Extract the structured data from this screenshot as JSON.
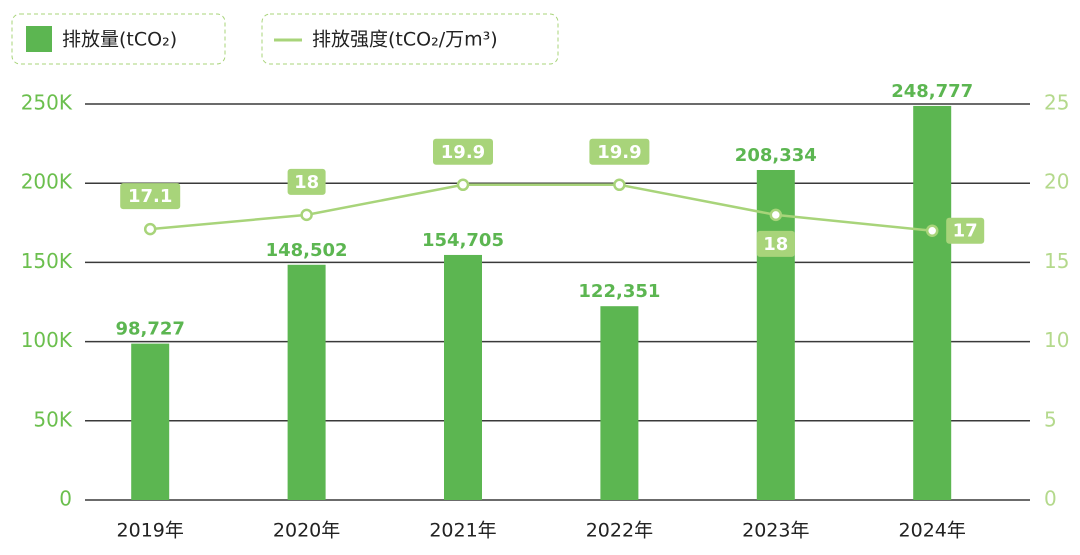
{
  "chart_data": {
    "type": "bar-line",
    "categories": [
      "2019年",
      "2020年",
      "2021年",
      "2022年",
      "2023年",
      "2024年"
    ],
    "series": [
      {
        "name": "排放量(tCO₂)",
        "type": "bar",
        "color": "#5cb651",
        "axis": "y",
        "values": [
          98727,
          148502,
          154705,
          122351,
          208334,
          248777
        ],
        "value_labels": [
          "98,727",
          "148,502",
          "154,705",
          "122,351",
          "208,334",
          "248,777"
        ]
      },
      {
        "name": "排放强度(tCO₂/万m³)",
        "type": "line",
        "color": "#a8d47a",
        "axis": "y2",
        "values": [
          17.1,
          18,
          19.9,
          19.9,
          18,
          17
        ]
      }
    ],
    "ylim": [
      0,
      250000
    ],
    "yticks": [
      0,
      {
        "value": 50000,
        "label": "50K"
      },
      {
        "value": 100000,
        "label": "100K"
      },
      {
        "value": 150000,
        "label": "150K"
      },
      {
        "value": 200000,
        "label": "200K"
      },
      {
        "value": 250000,
        "label": "250K"
      }
    ],
    "y2lim": [
      0,
      25
    ],
    "y2ticks": [
      0,
      5,
      10,
      15,
      20,
      25
    ],
    "grid": true
  }
}
